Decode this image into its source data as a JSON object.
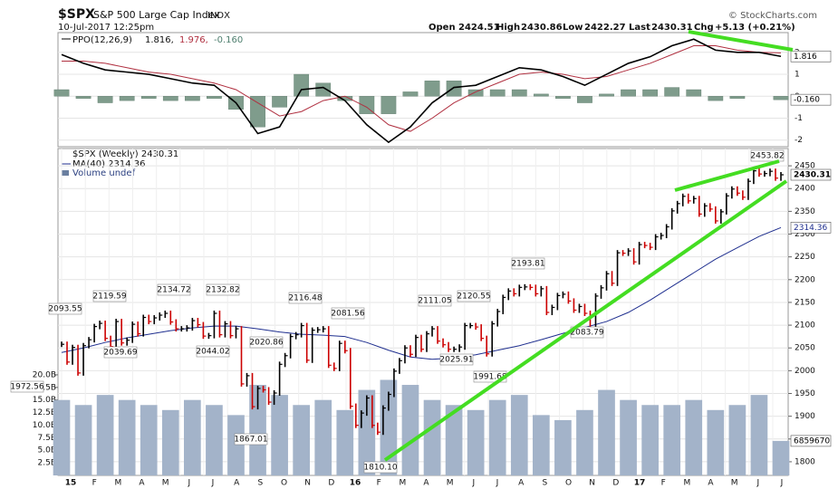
{
  "chart_data": {
    "type": "ohlc",
    "title": "$SPX",
    "subtitle": "S&P 500 Large Cap Index",
    "exchange": "INDX",
    "credit": "© StockCharts.com",
    "date": "10-Jul-2017 12:25pm",
    "quote": {
      "open_label": "Open",
      "open": 2424.51,
      "high_label": "High",
      "high": 2430.86,
      "low_label": "Low",
      "low": 2422.27,
      "last_label": "Last",
      "last": 2430.31,
      "chg_label": "Chg",
      "chg": "+5.13 (+0.21%)"
    },
    "months": [
      "15",
      "F",
      "M",
      "A",
      "M",
      "J",
      "J",
      "A",
      "S",
      "O",
      "N",
      "D",
      "16",
      "F",
      "M",
      "A",
      "M",
      "J",
      "J",
      "A",
      "S",
      "O",
      "N",
      "D",
      "17",
      "F",
      "M",
      "A",
      "M",
      "J",
      "J"
    ],
    "price": {
      "legend": "$SPX (Weekly) 2430.31",
      "up_color": "#000000",
      "down_color": "#cc0000",
      "values": [
        2058,
        2019,
        2051,
        1995,
        2055,
        2068,
        2097,
        2104,
        2071,
        2053,
        2108,
        2061,
        2067,
        2102,
        2081,
        2117,
        2108,
        2116,
        2122,
        2126,
        2107,
        2092,
        2092,
        2094,
        2110,
        2101,
        2076,
        2077,
        2126,
        2079,
        2103,
        2077,
        2092,
        1971,
        1989,
        1921,
        1961,
        1958,
        1931,
        1951,
        2014,
        2033,
        2075,
        2079,
        2099,
        2023,
        2089,
        2090,
        2092,
        2012,
        2005,
        2060,
        2044,
        1922,
        1880,
        1907,
        1940,
        1880,
        1865,
        1918,
        1948,
        1999,
        2022,
        2050,
        2036,
        2073,
        2047,
        2081,
        2092,
        2065,
        2057,
        2047,
        2047,
        2052,
        2099,
        2099,
        2096,
        2071,
        2037,
        2103,
        2130,
        2161,
        2175,
        2169,
        2183,
        2184,
        2183,
        2169,
        2180,
        2128,
        2139,
        2165,
        2168,
        2153,
        2133,
        2141,
        2126,
        2085,
        2164,
        2182,
        2213,
        2192,
        2259,
        2258,
        2263,
        2239,
        2277,
        2275,
        2271,
        2294,
        2297,
        2316,
        2351,
        2367,
        2383,
        2373,
        2378,
        2344,
        2362,
        2355,
        2329,
        2349,
        2384,
        2399,
        2390,
        2381,
        2416,
        2439,
        2432,
        2433,
        2438,
        2423,
        2430.31
      ],
      "ylim": [
        1770,
        2488
      ],
      "yticks": [
        1800,
        1850,
        1900,
        1950,
        2000,
        2050,
        2100,
        2150,
        2200,
        2250,
        2300,
        2350,
        2400,
        2450
      ],
      "last_label": "2430.31",
      "annotations": [
        {
          "value": 2093.55,
          "label": "2093.55"
        },
        {
          "value": 1972.56,
          "label": "1972.56"
        },
        {
          "value": 2119.59,
          "label": "2119.59"
        },
        {
          "value": 2039.69,
          "label": "2039.69"
        },
        {
          "value": 2134.72,
          "label": "2134.72"
        },
        {
          "value": 2132.82,
          "label": "2132.82"
        },
        {
          "value": 2044.02,
          "label": "2044.02"
        },
        {
          "value": 2020.86,
          "label": "2020.86"
        },
        {
          "value": 1867.01,
          "label": "1867.01"
        },
        {
          "value": 2116.48,
          "label": "2116.48"
        },
        {
          "value": 2081.56,
          "label": "2081.56"
        },
        {
          "value": 1810.1,
          "label": "1810.10"
        },
        {
          "value": 2111.05,
          "label": "2111.05"
        },
        {
          "value": 2120.55,
          "label": "2120.55"
        },
        {
          "value": 2025.91,
          "label": "2025.91"
        },
        {
          "value": 1991.68,
          "label": "1991.68"
        },
        {
          "value": 2193.81,
          "label": "2193.81"
        },
        {
          "value": 2083.79,
          "label": "2083.79"
        },
        {
          "value": 2453.82,
          "label": "2453.82"
        }
      ]
    },
    "ma": {
      "legend": "MA(40) 2314.36",
      "color": "#1f2f8f",
      "last_label": "2314.36",
      "values": [
        2040,
        2050,
        2062,
        2072,
        2080,
        2088,
        2094,
        2098,
        2098,
        2092,
        2085,
        2080,
        2078,
        2075,
        2062,
        2045,
        2030,
        2025,
        2028,
        2035,
        2045,
        2055,
        2068,
        2082,
        2095,
        2108,
        2128,
        2155,
        2185,
        2215,
        2245,
        2270,
        2295,
        2314.36
      ]
    },
    "volume": {
      "legend": "Volume undef",
      "color": "#a3b3c9",
      "last_label": "6859670",
      "values": [
        15,
        14,
        16,
        15,
        14,
        13,
        15,
        14,
        12,
        18,
        16,
        14,
        15,
        13,
        17,
        19,
        18,
        15,
        14,
        13,
        15,
        16,
        12,
        11,
        13,
        17,
        15,
        14,
        14,
        15,
        13,
        14,
        16,
        6.86
      ],
      "ylim": [
        0,
        65
      ],
      "yticks": [
        {
          "value": 2.5,
          "label": "2.5B"
        },
        {
          "value": 5,
          "label": "5.0B"
        },
        {
          "value": 7.5,
          "label": "7.5B"
        },
        {
          "value": 10,
          "label": "10.0B"
        },
        {
          "value": 12.5,
          "label": "12.5B"
        },
        {
          "value": 15,
          "label": "15.0B"
        },
        {
          "value": 17.5,
          "label": "17.5B"
        },
        {
          "value": 20,
          "label": "20.0B"
        }
      ]
    },
    "ppo": {
      "legend_name": "PPO(12,26,9)",
      "legend_ppo": "1.816,",
      "legend_signal": "1.976,",
      "legend_hist": "-0.160",
      "ppo_color": "#000000",
      "signal_color": "#b03040",
      "hist_color": "#7f9c8c",
      "ppo": [
        1.9,
        1.5,
        1.2,
        1.1,
        1.0,
        0.8,
        0.6,
        0.5,
        -0.3,
        -1.7,
        -1.4,
        0.3,
        0.4,
        -0.2,
        -1.3,
        -2.1,
        -1.4,
        -0.3,
        0.4,
        0.5,
        0.9,
        1.3,
        1.2,
        0.9,
        0.5,
        1.0,
        1.5,
        1.8,
        2.3,
        2.6,
        2.1,
        2.0,
        2.0,
        1.816
      ],
      "signal": [
        1.6,
        1.6,
        1.5,
        1.3,
        1.1,
        1.0,
        0.8,
        0.6,
        0.3,
        -0.3,
        -0.9,
        -0.7,
        -0.2,
        0.0,
        -0.5,
        -1.3,
        -1.6,
        -1.0,
        -0.3,
        0.2,
        0.6,
        1.0,
        1.1,
        1.0,
        0.8,
        0.9,
        1.2,
        1.5,
        1.9,
        2.3,
        2.3,
        2.1,
        2.0,
        1.976
      ],
      "hist": [
        0.3,
        -0.1,
        -0.3,
        -0.2,
        -0.1,
        -0.2,
        -0.2,
        -0.1,
        -0.6,
        -1.4,
        -0.5,
        1.0,
        0.6,
        -0.2,
        -0.8,
        -0.8,
        0.2,
        0.7,
        0.7,
        0.3,
        0.3,
        0.3,
        0.1,
        -0.1,
        -0.3,
        0.1,
        0.3,
        0.3,
        0.4,
        0.3,
        -0.2,
        -0.1,
        0.0,
        -0.16
      ],
      "ylim": [
        -2.3,
        2.9
      ],
      "yticks": [
        2,
        1,
        0,
        -1,
        -2
      ],
      "last_ppo_label": "1.816",
      "last_hist_label": "-0.160"
    }
  }
}
